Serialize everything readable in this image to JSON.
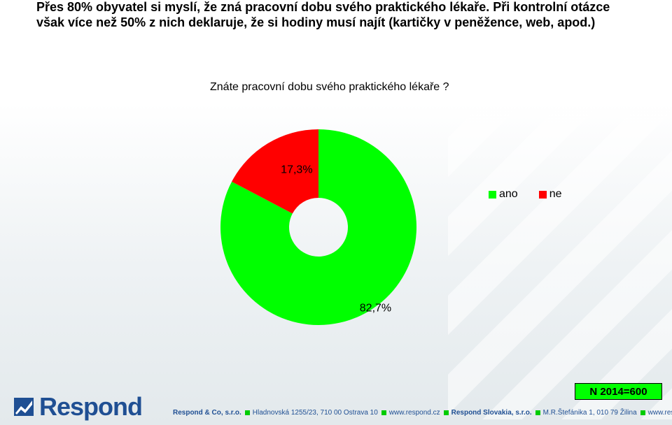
{
  "header": {
    "line1": "Přes 80% obyvatel si myslí, že zná pracovní dobu svého praktického lékaře. Při kontrolní otázce",
    "line2": "však více než 50% z nich deklaruje, že si hodiny musí najít (kartičky v peněžence, web, apod.)"
  },
  "chart_data": {
    "type": "pie",
    "title": "Znáte pracovní dobu svého praktického lékaře ?",
    "categories": [
      "ano",
      "ne"
    ],
    "values": [
      82.7,
      17.3
    ],
    "labels": [
      "82,7%",
      "17,3%"
    ],
    "colors": [
      "#00ff00",
      "#ff0000"
    ],
    "legend_position": "right"
  },
  "sample_note": "N 2014=600",
  "logo": {
    "text": "Respond"
  },
  "footer": {
    "company1": "Respond & Co, s.r.o.",
    "address1": "Hladnovská 1255/23, 710 00  Ostrava 10",
    "web1": "www.respond.cz",
    "company2": "Respond Slovakia, s.r.o.",
    "address2": "M.R.Štefánika 1, 010 79  Žilina",
    "web2": "www.respond.sk"
  },
  "colors": {
    "brand_blue": "#1f4f93",
    "accent_green": "#00cc00"
  }
}
